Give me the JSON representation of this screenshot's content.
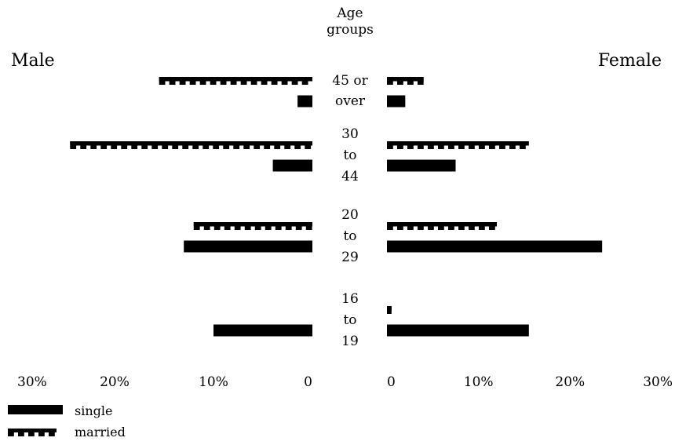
{
  "chart_data": {
    "type": "bar",
    "title": "",
    "center_label_lines": [
      "Age",
      "groups"
    ],
    "left_label": "Male",
    "right_label": "Female",
    "categories": [
      {
        "label_lines": [
          "45 or",
          "over"
        ]
      },
      {
        "label_lines": [
          "30",
          "to",
          "44"
        ]
      },
      {
        "label_lines": [
          "20",
          "to",
          "29"
        ]
      },
      {
        "label_lines": [
          "16",
          "to",
          "19"
        ]
      }
    ],
    "series": [
      {
        "name": "married",
        "style": "wavy",
        "male": [
          15.5,
          24.5,
          12,
          0
        ],
        "female": [
          4,
          15.5,
          12,
          0.5
        ]
      },
      {
        "name": "single",
        "style": "solid",
        "male": [
          1.5,
          4,
          13,
          10
        ],
        "female": [
          2,
          7.5,
          23.5,
          15.5
        ]
      }
    ],
    "x_range": [
      0,
      30
    ],
    "left_ticks": [
      "30%",
      "20%",
      "10%",
      "0"
    ],
    "right_ticks": [
      "0",
      "10%",
      "20%",
      "30%"
    ],
    "legend_position": "bottom-left",
    "colors": {
      "bars": "#000000",
      "background": "#ffffff"
    }
  }
}
